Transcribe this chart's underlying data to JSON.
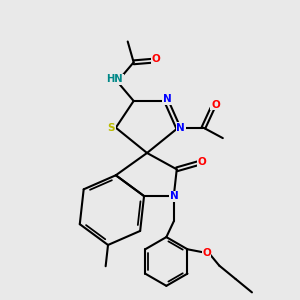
{
  "bg_color": "#e9e9e9",
  "fig_width": 3.0,
  "fig_height": 3.0,
  "dpi": 100,
  "atom_colors": {
    "C": "#000000",
    "N": "#0000ff",
    "O": "#ff0000",
    "S": "#bbbb00",
    "H": "#008888"
  },
  "bond_color": "#000000",
  "bond_width": 1.5
}
